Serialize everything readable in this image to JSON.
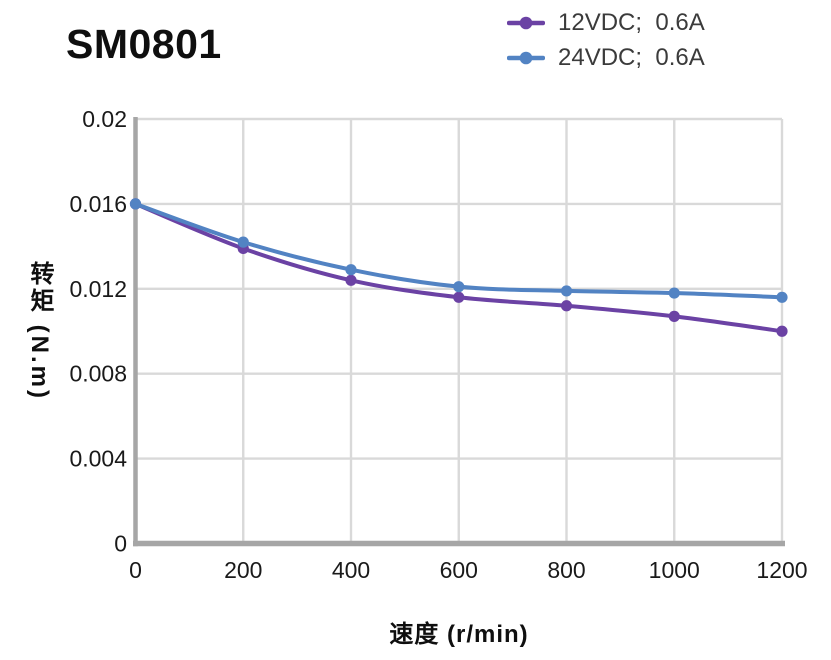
{
  "title": "SM0801",
  "chart_data": {
    "type": "line",
    "title": "SM0801",
    "xlabel": "速度 (r/min)",
    "ylabel": "转矩 (N.m)",
    "x": [
      0,
      200,
      400,
      600,
      800,
      1000,
      1200
    ],
    "xticks": [
      0,
      200,
      400,
      600,
      800,
      1000,
      1200
    ],
    "xtick_labels": [
      "0",
      "200",
      "400",
      "600",
      "800",
      "1000",
      "1200"
    ],
    "yticks": [
      0,
      0.004,
      0.008,
      0.012,
      0.016,
      0.02
    ],
    "ytick_labels": [
      "0",
      "0.004",
      "0.008",
      "0.012",
      "0.016",
      "0.02"
    ],
    "xlim": [
      0,
      1200
    ],
    "ylim": [
      0,
      0.02
    ],
    "grid": true,
    "legend_position": "top-right",
    "series": [
      {
        "name": "12VDC;  0.6A",
        "color": "#6B42A4",
        "values": [
          0.016,
          0.0139,
          0.0124,
          0.0116,
          0.0112,
          0.0107,
          0.01
        ]
      },
      {
        "name": "24VDC;  0.6A",
        "color": "#5283C3",
        "values": [
          0.016,
          0.0142,
          0.0129,
          0.0121,
          0.0119,
          0.0118,
          0.0116
        ]
      }
    ],
    "colors": {
      "axis": "#A6A6A6",
      "grid": "#D9D9D9",
      "tick_text": "#1A1A1A"
    }
  }
}
